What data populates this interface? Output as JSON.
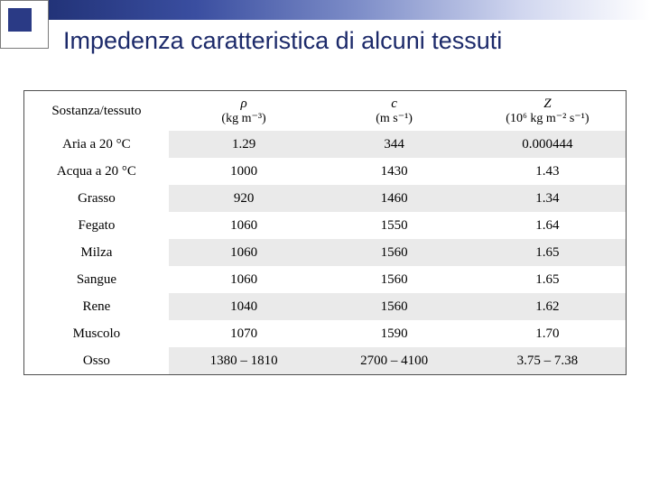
{
  "title": "Impedenza caratteristica di alcuni tessuti",
  "columns": [
    {
      "main": "Sostanza/tessuto",
      "unit": ""
    },
    {
      "main": "ρ",
      "unit": "(kg m⁻³)"
    },
    {
      "main": "c",
      "unit": "(m s⁻¹)"
    },
    {
      "main": "Z",
      "unit": "(10⁶ kg m⁻² s⁻¹)"
    }
  ],
  "rows": [
    [
      "Aria a 20 °C",
      "1.29",
      "344",
      "0.000444"
    ],
    [
      "Acqua a 20 °C",
      "1000",
      "1430",
      "1.43"
    ],
    [
      "Grasso",
      "920",
      "1460",
      "1.34"
    ],
    [
      "Fegato",
      "1060",
      "1550",
      "1.64"
    ],
    [
      "Milza",
      "1060",
      "1560",
      "1.65"
    ],
    [
      "Sangue",
      "1060",
      "1560",
      "1.65"
    ],
    [
      "Rene",
      "1040",
      "1560",
      "1.62"
    ],
    [
      "Muscolo",
      "1070",
      "1590",
      "1.70"
    ],
    [
      "Osso",
      "1380 – 1810",
      "2700 – 4100",
      "3.75 – 7.38"
    ]
  ]
}
